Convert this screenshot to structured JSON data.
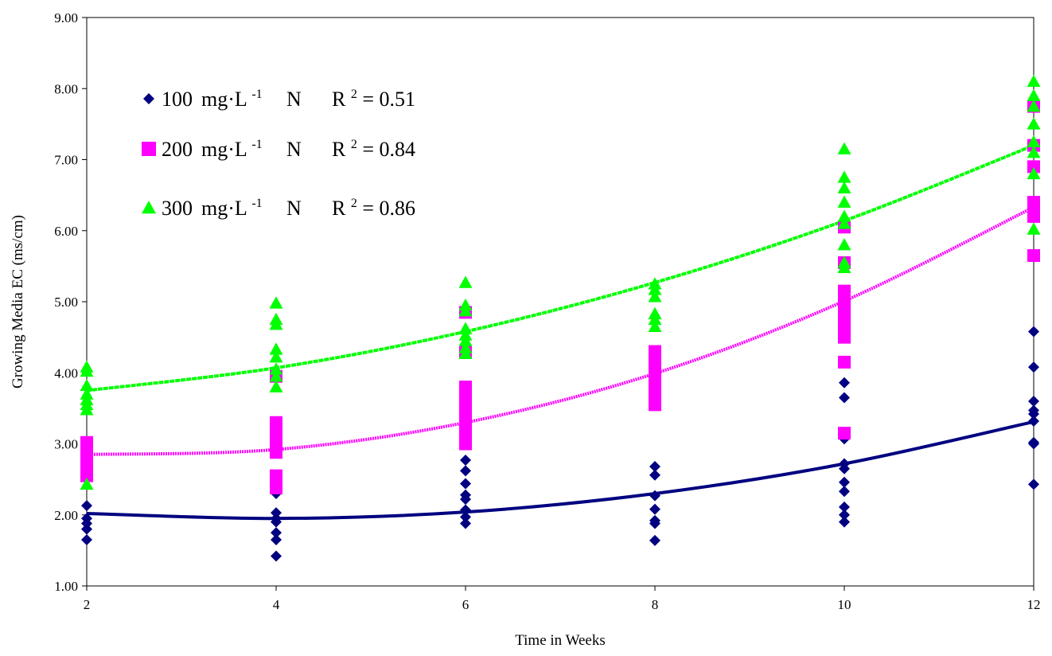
{
  "chart_data": {
    "type": "scatter",
    "xlabel": "Time in Weeks",
    "ylabel": "Growing Media EC (ms/cm)",
    "xlim": [
      2,
      12
    ],
    "ylim": [
      1,
      9
    ],
    "x_ticks": [
      "2",
      "4",
      "6",
      "8",
      "10",
      "12"
    ],
    "y_ticks": [
      "1.00",
      "2.00",
      "3.00",
      "4.00",
      "5.00",
      "6.00",
      "7.00",
      "8.00",
      "9.00"
    ],
    "grid": false,
    "legend_position": "top-left",
    "series": [
      {
        "name": "100 mg·L-1 N",
        "legend": {
          "rate": "100",
          "unit": "mg·L",
          "exp": "-1",
          "el": "N",
          "r2_label": "R",
          "r2_exp": "2",
          "r2_value": " = 0.51"
        },
        "r2": 0.51,
        "color": "#000080",
        "marker": "diamond",
        "points": [
          [
            2,
            2.13
          ],
          [
            2,
            1.95
          ],
          [
            2,
            1.88
          ],
          [
            2,
            1.8
          ],
          [
            2,
            1.65
          ],
          [
            4,
            2.45
          ],
          [
            4,
            2.3
          ],
          [
            4,
            2.03
          ],
          [
            4,
            1.95
          ],
          [
            4,
            1.9
          ],
          [
            4,
            1.75
          ],
          [
            4,
            1.65
          ],
          [
            4,
            1.42
          ],
          [
            6,
            2.77
          ],
          [
            6,
            2.62
          ],
          [
            6,
            2.44
          ],
          [
            6,
            2.28
          ],
          [
            6,
            2.22
          ],
          [
            6,
            2.07
          ],
          [
            6,
            1.97
          ],
          [
            6,
            1.88
          ],
          [
            8,
            2.68
          ],
          [
            8,
            2.56
          ],
          [
            8,
            2.27
          ],
          [
            8,
            2.08
          ],
          [
            8,
            1.92
          ],
          [
            8,
            1.88
          ],
          [
            8,
            1.64
          ],
          [
            10,
            3.86
          ],
          [
            10,
            3.65
          ],
          [
            10,
            3.07
          ],
          [
            10,
            2.72
          ],
          [
            10,
            2.65
          ],
          [
            10,
            2.46
          ],
          [
            10,
            2.33
          ],
          [
            10,
            2.11
          ],
          [
            10,
            2.0
          ],
          [
            10,
            1.9
          ],
          [
            12,
            4.58
          ],
          [
            12,
            4.08
          ],
          [
            12,
            3.6
          ],
          [
            12,
            3.47
          ],
          [
            12,
            3.42
          ],
          [
            12,
            3.32
          ],
          [
            12,
            3.02
          ],
          [
            12,
            3.0
          ],
          [
            12,
            2.43
          ]
        ],
        "trend": [
          2.02,
          1.95,
          2.04,
          2.3,
          2.72,
          3.31
        ]
      },
      {
        "name": "200 mg·L-1 N",
        "legend": {
          "rate": "200",
          "unit": "mg·L",
          "exp": "-1",
          "el": "N",
          "r2_label": "R",
          "r2_exp": "2",
          "r2_value": " = 0.84"
        },
        "r2": 0.84,
        "color": "#FF00FF",
        "marker": "square",
        "points": [
          [
            2,
            3.02
          ],
          [
            2,
            2.92
          ],
          [
            2,
            2.85
          ],
          [
            2,
            2.78
          ],
          [
            2,
            2.7
          ],
          [
            2,
            2.62
          ],
          [
            2,
            2.55
          ],
          [
            4,
            3.3
          ],
          [
            4,
            3.2
          ],
          [
            4,
            3.1
          ],
          [
            4,
            3.02
          ],
          [
            4,
            2.95
          ],
          [
            4,
            2.88
          ],
          [
            4,
            2.55
          ],
          [
            4,
            2.38
          ],
          [
            4,
            3.95
          ],
          [
            6,
            4.85
          ],
          [
            6,
            4.3
          ],
          [
            6,
            3.8
          ],
          [
            6,
            3.7
          ],
          [
            6,
            3.6
          ],
          [
            6,
            3.5
          ],
          [
            6,
            3.4
          ],
          [
            6,
            3.3
          ],
          [
            6,
            3.2
          ],
          [
            6,
            3.1
          ],
          [
            6,
            3.0
          ],
          [
            8,
            4.3
          ],
          [
            8,
            4.2
          ],
          [
            8,
            4.1
          ],
          [
            8,
            4.0
          ],
          [
            8,
            3.95
          ],
          [
            8,
            3.85
          ],
          [
            8,
            3.75
          ],
          [
            8,
            3.65
          ],
          [
            8,
            3.55
          ],
          [
            10,
            6.05
          ],
          [
            10,
            5.55
          ],
          [
            10,
            5.15
          ],
          [
            10,
            5.05
          ],
          [
            10,
            4.95
          ],
          [
            10,
            4.8
          ],
          [
            10,
            4.7
          ],
          [
            10,
            4.6
          ],
          [
            10,
            4.5
          ],
          [
            10,
            4.15
          ],
          [
            10,
            3.15
          ],
          [
            12,
            7.75
          ],
          [
            12,
            7.2
          ],
          [
            12,
            6.9
          ],
          [
            12,
            6.4
          ],
          [
            12,
            6.3
          ],
          [
            12,
            6.2
          ],
          [
            12,
            5.65
          ]
        ],
        "trend": [
          2.85,
          2.92,
          3.3,
          3.99,
          5.01,
          6.33
        ]
      },
      {
        "name": "300 mg·L-1 N",
        "legend": {
          "rate": "300",
          "unit": "mg·L",
          "exp": "-1",
          "el": "N",
          "r2_label": "R",
          "r2_exp": "2",
          "r2_value": " = 0.86"
        },
        "r2": 0.86,
        "color": "#00FF00",
        "marker": "triangle",
        "points": [
          [
            2,
            4.08
          ],
          [
            2,
            4.02
          ],
          [
            2,
            3.82
          ],
          [
            2,
            3.7
          ],
          [
            2,
            3.62
          ],
          [
            2,
            3.55
          ],
          [
            2,
            3.48
          ],
          [
            2,
            2.43
          ],
          [
            4,
            4.98
          ],
          [
            4,
            4.75
          ],
          [
            4,
            4.68
          ],
          [
            4,
            4.33
          ],
          [
            4,
            4.22
          ],
          [
            4,
            4.05
          ],
          [
            4,
            3.95
          ],
          [
            4,
            3.8
          ],
          [
            6,
            5.27
          ],
          [
            6,
            4.95
          ],
          [
            6,
            4.87
          ],
          [
            6,
            4.62
          ],
          [
            6,
            4.53
          ],
          [
            6,
            4.45
          ],
          [
            6,
            4.35
          ],
          [
            6,
            4.27
          ],
          [
            8,
            5.25
          ],
          [
            8,
            5.17
          ],
          [
            8,
            5.07
          ],
          [
            8,
            4.83
          ],
          [
            8,
            4.75
          ],
          [
            8,
            4.65
          ],
          [
            10,
            7.15
          ],
          [
            10,
            6.75
          ],
          [
            10,
            6.6
          ],
          [
            10,
            6.4
          ],
          [
            10,
            6.2
          ],
          [
            10,
            6.1
          ],
          [
            10,
            5.8
          ],
          [
            10,
            5.55
          ],
          [
            10,
            5.48
          ],
          [
            12,
            8.1
          ],
          [
            12,
            7.9
          ],
          [
            12,
            7.75
          ],
          [
            12,
            7.5
          ],
          [
            12,
            7.25
          ],
          [
            12,
            7.1
          ],
          [
            12,
            6.8
          ],
          [
            12,
            6.02
          ]
        ],
        "trend": [
          3.75,
          4.07,
          4.58,
          5.27,
          6.14,
          7.2
        ]
      }
    ]
  }
}
